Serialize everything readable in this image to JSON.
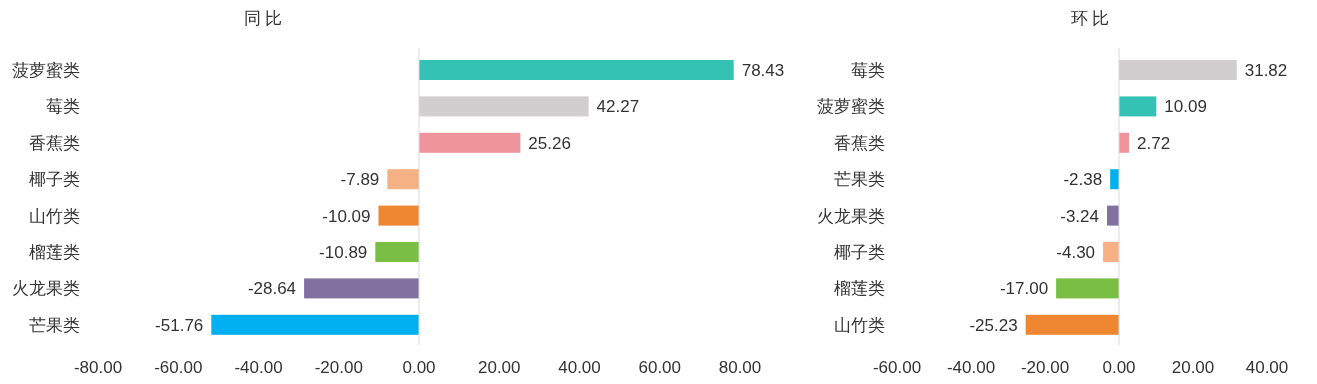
{
  "chart_data": [
    {
      "type": "bar",
      "orientation": "horizontal",
      "title": "同 比",
      "categories": [
        "菠萝蜜类",
        "莓类",
        "香蕉类",
        "椰子类",
        "山竹类",
        "榴莲类",
        "火龙果类",
        "芒果类"
      ],
      "values": [
        78.43,
        42.27,
        25.26,
        -7.89,
        -10.09,
        -10.89,
        -28.64,
        -51.76
      ],
      "value_labels": [
        "78.43",
        "42.27",
        "25.26",
        "-7.89",
        "-10.09",
        "-10.89",
        "-28.64",
        "-51.76"
      ],
      "colors": [
        "#33c2b4",
        "#d0cece",
        "#f0949c",
        "#f5b183",
        "#ef8631",
        "#7abf43",
        "#8071a0",
        "#00b0f0"
      ],
      "xlim": [
        -80,
        80
      ],
      "xticks": [
        {
          "value": -80,
          "label": "-80.00"
        },
        {
          "value": -60,
          "label": "-60.00"
        },
        {
          "value": -40,
          "label": "-40.00"
        },
        {
          "value": -20,
          "label": "-20.00"
        },
        {
          "value": 0,
          "label": "0.00"
        },
        {
          "value": 20,
          "label": "20.00"
        },
        {
          "value": 40,
          "label": "40.00"
        },
        {
          "value": 60,
          "label": "60.00"
        },
        {
          "value": 80,
          "label": "80.00"
        }
      ]
    },
    {
      "type": "bar",
      "orientation": "horizontal",
      "title": "环 比",
      "categories": [
        "莓类",
        "菠萝蜜类",
        "香蕉类",
        "芒果类",
        "火龙果类",
        "椰子类",
        "榴莲类",
        "山竹类"
      ],
      "values": [
        31.82,
        10.09,
        2.72,
        -2.38,
        -3.24,
        -4.3,
        -17,
        -25.23
      ],
      "value_labels": [
        "31.82",
        "10.09",
        "2.72",
        "-2.38",
        "-3.24",
        "-4.30",
        "-17.00",
        "-25.23"
      ],
      "colors": [
        "#d0cece",
        "#33c2b4",
        "#f0949c",
        "#00b0f0",
        "#8071a0",
        "#f5b183",
        "#7abf43",
        "#ef8631"
      ],
      "xlim": [
        -60,
        40
      ],
      "xticks": [
        {
          "value": -60,
          "label": "-60.00"
        },
        {
          "value": -40,
          "label": "-40.00"
        },
        {
          "value": -20,
          "label": "-20.00"
        },
        {
          "value": 0,
          "label": "0.00"
        },
        {
          "value": 20,
          "label": "20.00"
        },
        {
          "value": 40,
          "label": "40.00"
        }
      ]
    }
  ]
}
